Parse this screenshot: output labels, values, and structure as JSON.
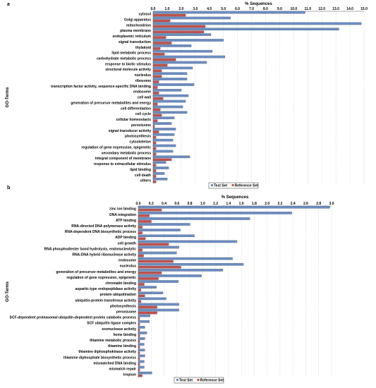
{
  "chart_data": [
    {
      "panel_label": "a",
      "type": "bar",
      "orientation": "horizontal",
      "title": "% Sequences",
      "ylabel": "GO-Terms",
      "xlim": [
        0,
        15
      ],
      "xticks": [
        "0.0",
        "1.0",
        "2.0",
        "3.0",
        "4.0",
        "5.0",
        "6.0",
        "7.0",
        "8.0",
        "9.0",
        "10.0",
        "11.0",
        "12.0",
        "13.0",
        "14.0",
        "15.0"
      ],
      "grid": "vertical dashed",
      "legend_position": "bottom",
      "categories": [
        "cytosol",
        "Golgi apparatus",
        "mitochondrion",
        "plasma membrane",
        "endoplasmic reticulum",
        "signal transduction",
        "thylakoid",
        "lipid metabolic process",
        "carbohydrate metabolic process",
        "response to biotic stimulus",
        "structural molecule activity",
        "nucleolus",
        "ribosome",
        "transcription factor activity, sequence-specific DNA binding",
        "endosome",
        "cell wall",
        "generation of precursor metabolites and energy",
        "cell differentiation",
        "cell cycle",
        "cellular homeostasis",
        "peroxisome",
        "signal transducer activity",
        "photosynthesis",
        "cytoskeleton",
        "regulation of gene expression, epigenetic",
        "secondary metabolic process",
        "integral component of membrane",
        "response to extracellular stimulus",
        "lipid binding",
        "cell death",
        "others"
      ],
      "series": [
        {
          "name": "Test Set",
          "color": "#6a8cc2",
          "values": [
            10.8,
            5.5,
            14.8,
            13.2,
            4.1,
            5.0,
            2.7,
            4.2,
            5.1,
            3.8,
            2.8,
            2.4,
            2.4,
            2.9,
            2.0,
            2.5,
            2.3,
            2.1,
            2.4,
            1.5,
            1.3,
            1.6,
            1.5,
            1.4,
            1.6,
            1.4,
            2.6,
            0.9,
            1.1,
            0.8,
            1.0
          ]
        },
        {
          "name": "Reference Set",
          "color": "#c0504d",
          "values": [
            2.3,
            1.2,
            3.7,
            3.6,
            0.9,
            1.3,
            0.5,
            0.8,
            1.6,
            1.0,
            0.6,
            0.6,
            0.4,
            0.3,
            0.4,
            0.7,
            0.3,
            0.5,
            0.6,
            0.3,
            0.1,
            0.4,
            0.2,
            0.2,
            0.2,
            0.2,
            1.3,
            0.2,
            0.2,
            0.2,
            0.2
          ]
        }
      ]
    },
    {
      "panel_label": "b",
      "type": "bar",
      "orientation": "horizontal",
      "title": "% Sequences",
      "ylabel": "GO-Terms",
      "xlim": [
        0,
        3.0
      ],
      "xticks": [
        "0.0",
        "0.2",
        "0.4",
        "0.6",
        "0.8",
        "1.0",
        "1.2",
        "1.4",
        "1.6",
        "1.8",
        "2.0",
        "2.2",
        "2.4",
        "2.6",
        "2.8",
        "3.0"
      ],
      "grid": "vertical dashed",
      "legend_position": "bottom",
      "categories": [
        "zinc ion binding",
        "DNA integration",
        "ATP binding",
        "RNA-directed DNA polymerase activity",
        "RNA-dependent DNA biosynthetic process",
        "ADP binding",
        "cell growth",
        "RNA phosphodiester bond hydrolysis, endonucleolytic",
        "RNA-DNA hybrid ribonuclease activity",
        "endosome",
        "nucleolus",
        "generation of precursor metabolites and energy",
        "regulation of gene expression, epigenetic",
        "chromatin binding",
        "aspartic-type endopeptidase activity",
        "protein ubiquitination",
        "ubiquitin-protein transferase activity",
        "photosynthesis",
        "peroxisome",
        "SCF-dependent proteasomal ubiquitin-dependent protein catabolic process",
        "SCF ubiquitin ligase complex",
        "exonuclease activity",
        "heme binding",
        "thiamine metabolic process",
        "thiamine binding",
        "thiamine diphosphokinase activity",
        "thiamine diphosphate biosynthetic process",
        "mismatched DNA binding",
        "mismatch repair",
        "tropism"
      ],
      "series": [
        {
          "name": "Test Set",
          "color": "#6a8cc2",
          "values": [
            2.97,
            2.38,
            1.73,
            0.8,
            0.65,
            0.87,
            1.53,
            0.63,
            0.59,
            1.46,
            1.63,
            1.31,
            0.98,
            0.62,
            0.28,
            0.38,
            0.43,
            0.63,
            0.63,
            0.18,
            0.17,
            0.1,
            0.13,
            0.1,
            0.09,
            0.1,
            0.1,
            0.09,
            0.09,
            0.21
          ]
        },
        {
          "name": "Reference Set",
          "color": "#c0504d",
          "values": [
            0.36,
            0.17,
            0.2,
            0.06,
            0.06,
            0.11,
            0.47,
            0.06,
            0.08,
            0.54,
            0.66,
            0.36,
            0.31,
            0.09,
            0.04,
            0.1,
            0.04,
            0.29,
            0.29,
            0.02,
            0.02,
            0.02,
            0.02,
            0.02,
            0.02,
            0.02,
            0.02,
            0.02,
            0.02,
            0.06
          ]
        }
      ]
    }
  ]
}
